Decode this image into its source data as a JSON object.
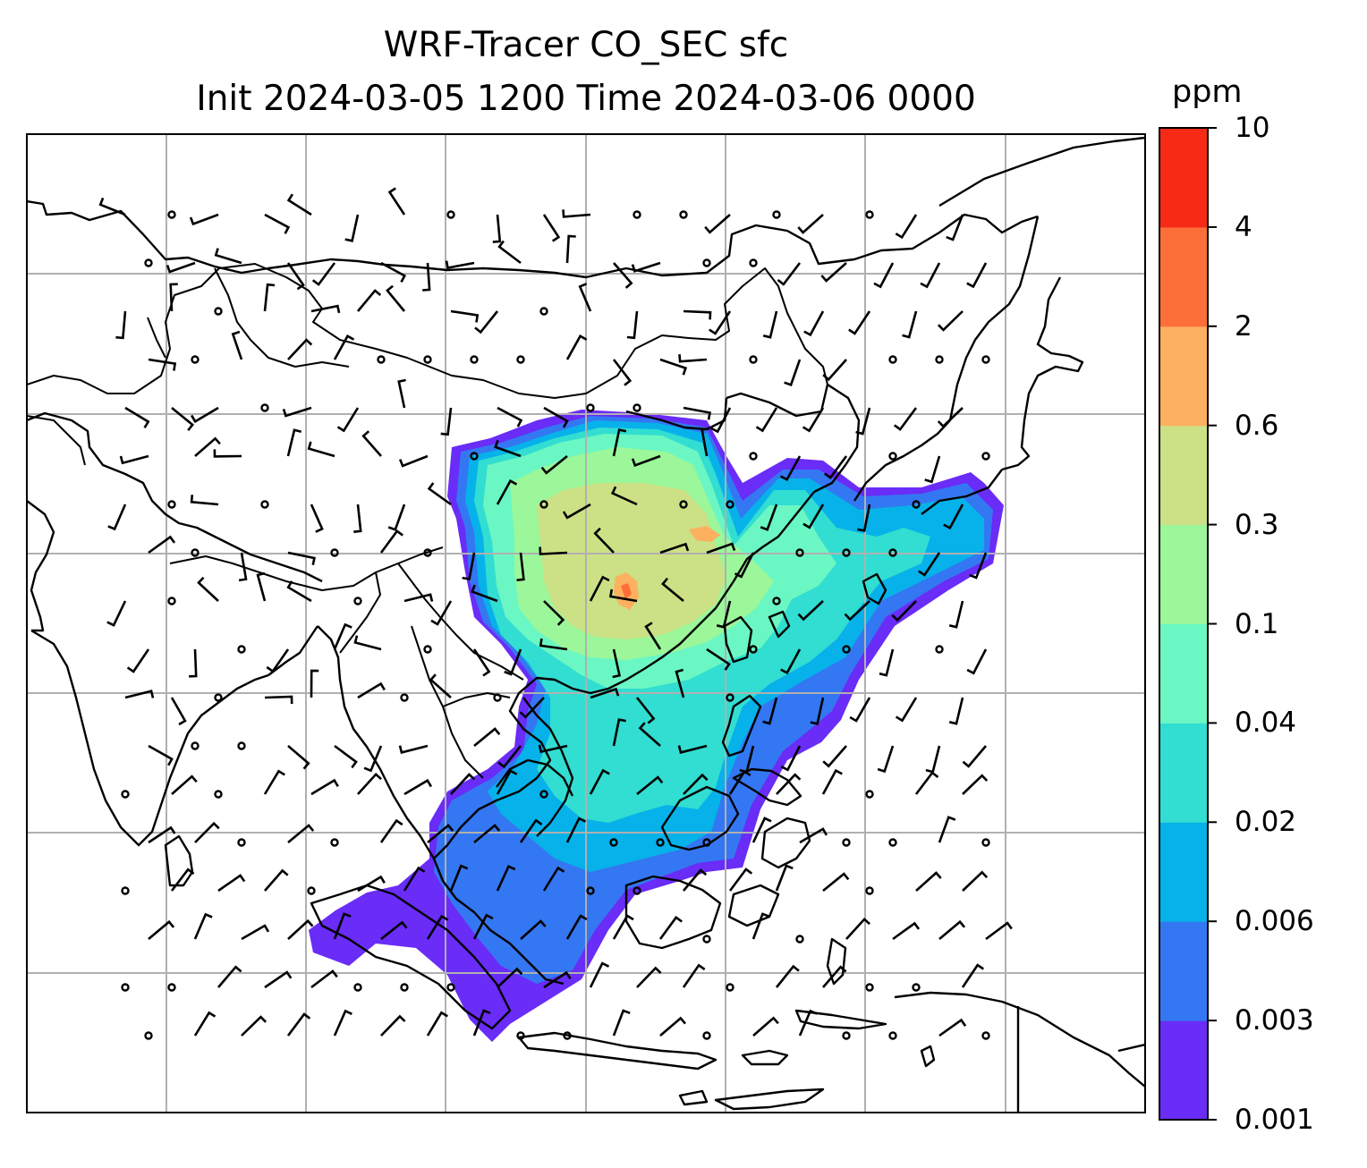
{
  "title": {
    "line1": "WRF-Tracer CO_SEC sfc",
    "line2": "Init 2024-03-05 1200 Time 2024-03-06 0000"
  },
  "colorbar": {
    "unit": "ppm",
    "levels": [
      "0.001",
      "0.003",
      "0.006",
      "0.02",
      "0.04",
      "0.1",
      "0.3",
      "0.6",
      "2",
      "4",
      "10"
    ],
    "colors": [
      "#6a2cf7",
      "#3477f2",
      "#06b2e9",
      "#32ddd1",
      "#6af7c3",
      "#9bf799",
      "#cce085",
      "#fdb05f",
      "#fd6f38",
      "#f62a15"
    ]
  },
  "map": {
    "gridlines": true,
    "features": [
      "coastlines",
      "country-borders",
      "wind-barbs",
      "calm-wind-circles",
      "tracer-concentration-contours"
    ]
  }
}
